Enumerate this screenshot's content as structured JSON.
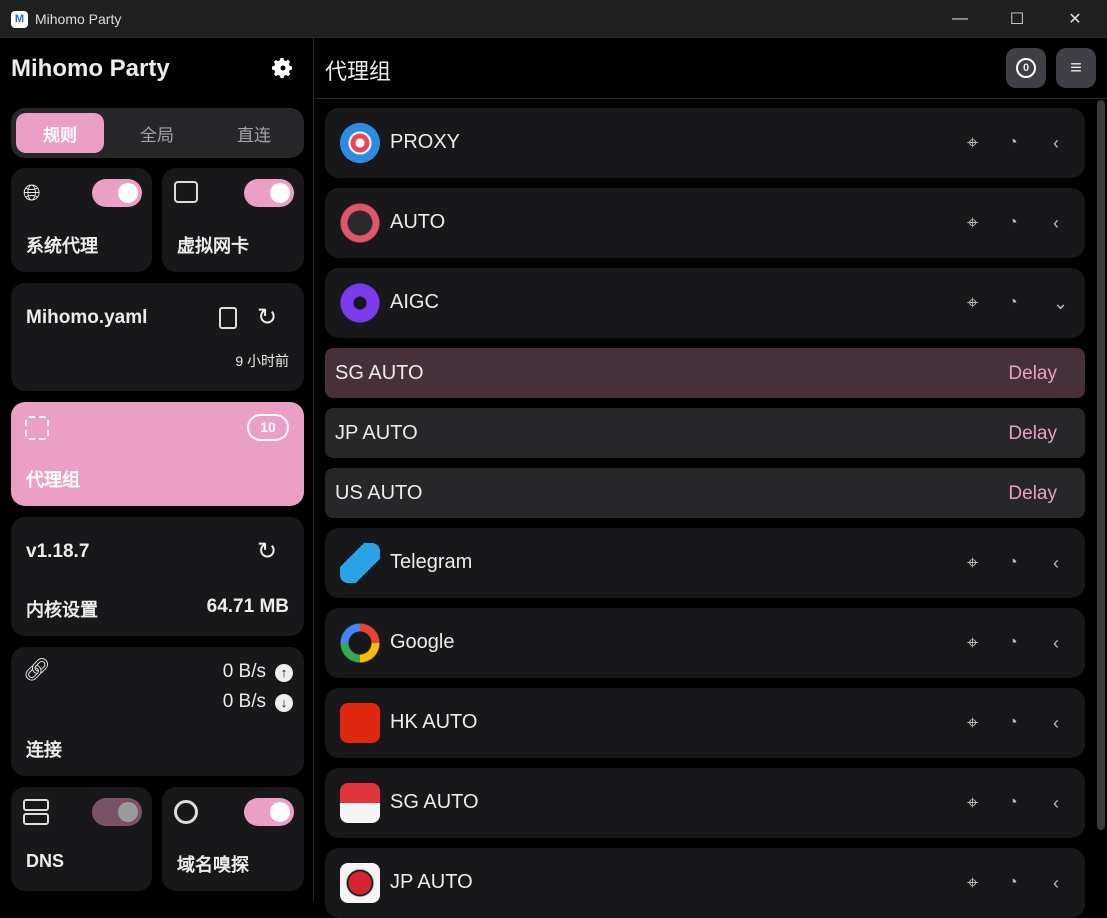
{
  "window": {
    "title": "Mihomo Party",
    "logo": "M",
    "minimize": "—",
    "maximize": "☐",
    "close": "✕"
  },
  "sidebar": {
    "app_name": "Mihomo Party",
    "modes": [
      {
        "label": "规则",
        "active": true
      },
      {
        "label": "全局",
        "active": false
      },
      {
        "label": "直连",
        "active": false
      }
    ],
    "system_proxy": {
      "label": "系统代理",
      "enabled": true
    },
    "tun": {
      "label": "虚拟网卡",
      "enabled": true
    },
    "profile": {
      "name": "Mihomo.yaml",
      "updated": "9 小时前"
    },
    "proxy_groups": {
      "label": "代理组",
      "count": "10"
    },
    "core": {
      "version": "v1.18.7",
      "label": "内核设置",
      "memory": "64.71 MB"
    },
    "connections": {
      "label": "连接",
      "upload": "0 B/s",
      "download": "0 B/s"
    },
    "dns": {
      "label": "DNS",
      "enabled": true,
      "disabled_state": true
    },
    "sniffer": {
      "label": "域名嗅探",
      "enabled": true
    }
  },
  "main": {
    "title": "代理组",
    "groups": [
      {
        "name": "PROXY",
        "icon": "proxy-icon",
        "expanded": false
      },
      {
        "name": "AUTO",
        "icon": "lightning-icon",
        "expanded": false
      },
      {
        "name": "AIGC",
        "icon": "openai-icon",
        "expanded": true,
        "proxies": [
          {
            "name": "SG AUTO",
            "delay": "Delay",
            "selected": true
          },
          {
            "name": "JP AUTO",
            "delay": "Delay",
            "selected": false
          },
          {
            "name": "US AUTO",
            "delay": "Delay",
            "selected": false
          }
        ]
      },
      {
        "name": "Telegram",
        "icon": "telegram-icon",
        "expanded": false
      },
      {
        "name": "Google",
        "icon": "google-icon",
        "expanded": false
      },
      {
        "name": "HK AUTO",
        "icon": "hk-flag-icon",
        "expanded": false
      },
      {
        "name": "SG AUTO",
        "icon": "sg-flag-icon",
        "expanded": false
      },
      {
        "name": "JP AUTO",
        "icon": "jp-flag-icon",
        "expanded": false
      }
    ]
  },
  "colors": {
    "accent": "#ec9fc5",
    "card": "#18181b",
    "selected_row": "#46303a",
    "row": "#27272a"
  }
}
